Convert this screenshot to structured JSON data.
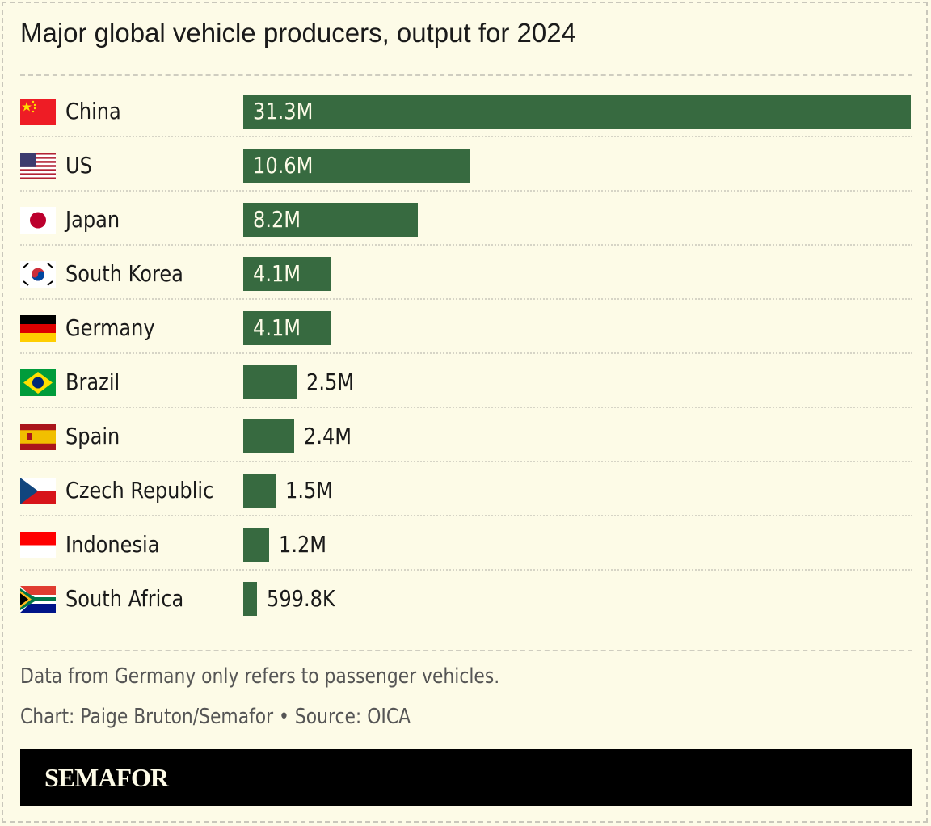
{
  "chart_data": {
    "type": "bar",
    "orientation": "horizontal",
    "title": "Major global vehicle producers, output for 2024",
    "categories": [
      "China",
      "US",
      "Japan",
      "South Korea",
      "Germany",
      "Brazil",
      "Spain",
      "Czech Republic",
      "Indonesia",
      "South Africa"
    ],
    "values": [
      31.3,
      10.6,
      8.2,
      4.1,
      4.1,
      2.5,
      2.4,
      1.5,
      1.2,
      0.5998
    ],
    "value_unit": "million vehicles",
    "data_labels": [
      "31.3M",
      "10.6M",
      "8.2M",
      "4.1M",
      "4.1M",
      "2.5M",
      "2.4M",
      "1.5M",
      "1.2M",
      "599.8K"
    ],
    "flags": [
      "china-flag",
      "us-flag",
      "japan-flag",
      "south-korea-flag",
      "germany-flag",
      "brazil-flag",
      "spain-flag",
      "czech-republic-flag",
      "indonesia-flag",
      "south-africa-flag"
    ],
    "bar_color": "#376a40",
    "grid": false
  },
  "footer": {
    "note": "Data from Germany only refers to passenger vehicles.",
    "credit": "Chart: Paige Bruton/Semafor • Source: OICA",
    "brand": "SEMAFOR"
  }
}
